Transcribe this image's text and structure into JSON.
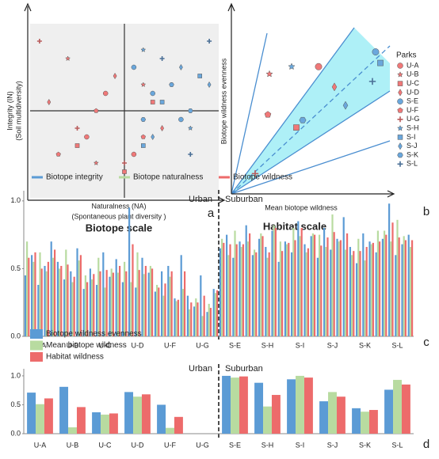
{
  "chart_data": [
    {
      "type": "scatter",
      "title": "Biotope scale",
      "label": "a",
      "xlabel": [
        "Naturalness (NA)",
        "(Spontaneous plant diversity )"
      ],
      "ylabel": [
        "Integrity (IN)",
        "(Soil multidiversity)"
      ],
      "xlim": [
        -1,
        1
      ],
      "ylim": [
        -1,
        1
      ],
      "series": [
        {
          "marker": "circle",
          "color": "#f07878",
          "x": [
            -0.4,
            -0.2,
            0.1
          ],
          "y": [
            -0.3,
            0.2,
            -0.5
          ]
        },
        {
          "marker": "star",
          "color": "#f07878",
          "x": [
            -0.6,
            -0.3,
            0.2
          ],
          "y": [
            0.6,
            -0.6,
            0.3
          ]
        },
        {
          "marker": "square",
          "color": "#f07878",
          "x": [
            -0.5,
            0.0,
            0.3
          ],
          "y": [
            -0.4,
            -0.7,
            0.1
          ]
        },
        {
          "marker": "diamond",
          "color": "#f07878",
          "x": [
            -0.8,
            -0.1,
            0.4
          ],
          "y": [
            0.1,
            0.4,
            -0.2
          ]
        },
        {
          "marker": "circle",
          "color": "#6aa7dc",
          "x": [
            0.3,
            0.6,
            0.1
          ],
          "y": [
            0.2,
            -0.1,
            0.5
          ]
        },
        {
          "marker": "pentagon",
          "color": "#f07878",
          "x": [
            -0.7,
            -0.3,
            0.2
          ],
          "y": [
            -0.5,
            0.0,
            -0.3
          ]
        },
        {
          "marker": "plus",
          "color": "#b85a5a",
          "x": [
            -0.9,
            -0.5,
            0.0
          ],
          "y": [
            0.8,
            -0.2,
            -0.6
          ]
        },
        {
          "marker": "star",
          "color": "#6aa7dc",
          "x": [
            0.5,
            0.2,
            0.7
          ],
          "y": [
            0.3,
            0.7,
            -0.2
          ]
        },
        {
          "marker": "square",
          "color": "#6aa7dc",
          "x": [
            0.4,
            0.8,
            0.2
          ],
          "y": [
            0.1,
            0.4,
            -0.4
          ]
        },
        {
          "marker": "diamond",
          "color": "#6aa7dc",
          "x": [
            0.6,
            0.3,
            0.9
          ],
          "y": [
            0.5,
            -0.3,
            0.3
          ]
        },
        {
          "marker": "hexagon",
          "color": "#6aa7dc",
          "x": [
            0.2,
            0.5,
            0.7
          ],
          "y": [
            -0.1,
            0.3,
            0.0
          ]
        },
        {
          "marker": "plus",
          "color": "#4a6f96",
          "x": [
            0.7,
            0.4,
            0.9
          ],
          "y": [
            -0.5,
            0.6,
            0.8
          ]
        }
      ]
    },
    {
      "type": "scatter",
      "title": "Habitat scale",
      "label": "b",
      "xlabel": [
        "Mean biotope wildness"
      ],
      "ylabel": [
        "Biotope wildness evenness"
      ],
      "legend_title": "Parks",
      "legend": "right",
      "xlim": [
        0,
        1
      ],
      "ylim": [
        0,
        1
      ],
      "series": [
        {
          "name": "U-A",
          "marker": "circle",
          "color": "#f07878",
          "x": [
            0.55
          ],
          "y": [
            0.69
          ]
        },
        {
          "name": "U-B",
          "marker": "star",
          "color": "#f07878",
          "x": [
            0.24
          ],
          "y": [
            0.65
          ]
        },
        {
          "name": "U-C",
          "marker": "square",
          "color": "#f07878",
          "x": [
            0.41
          ],
          "y": [
            0.36
          ]
        },
        {
          "name": "U-D",
          "marker": "diamond",
          "color": "#f07878",
          "x": [
            0.65
          ],
          "y": [
            0.58
          ]
        },
        {
          "name": "S-E",
          "marker": "circle",
          "color": "#6aa7dc",
          "x": [
            0.91
          ],
          "y": [
            0.77
          ]
        },
        {
          "name": "U-F",
          "marker": "pentagon",
          "color": "#f07878",
          "x": [
            0.23
          ],
          "y": [
            0.43
          ]
        },
        {
          "name": "U-G",
          "marker": "plus",
          "color": "#b85a5a",
          "x": [
            0.15
          ],
          "y": [
            0.11
          ]
        },
        {
          "name": "S-H",
          "marker": "star",
          "color": "#6aa7dc",
          "x": [
            0.38
          ],
          "y": [
            0.69
          ]
        },
        {
          "name": "S-I",
          "marker": "square",
          "color": "#6aa7dc",
          "x": [
            0.94
          ],
          "y": [
            0.71
          ]
        },
        {
          "name": "S-J",
          "marker": "diamond",
          "color": "#6aa7dc",
          "x": [
            0.72
          ],
          "y": [
            0.48
          ]
        },
        {
          "name": "S-K",
          "marker": "hexagon",
          "color": "#6aa7dc",
          "x": [
            0.45
          ],
          "y": [
            0.4
          ]
        },
        {
          "name": "S-L",
          "marker": "plus",
          "color": "#4a6f96",
          "x": [
            0.89
          ],
          "y": [
            0.61
          ]
        }
      ]
    },
    {
      "type": "bar",
      "label": "c",
      "legend": "top",
      "annotations": [
        "Urban",
        "Suburban"
      ],
      "ylim": [
        0,
        1.04
      ],
      "yticks": [
        {
          "value": 0,
          "label": "0.0"
        },
        {
          "value": 0.5,
          "label": "0.5"
        },
        {
          "value": 1,
          "label": "1.0"
        }
      ],
      "categories": [
        null,
        null,
        "U-A",
        null,
        null,
        null,
        null,
        "U-B",
        null,
        null,
        null,
        null,
        "U-C",
        null,
        null,
        null,
        null,
        "U-D",
        null,
        null,
        null,
        null,
        "U-F",
        null,
        null,
        null,
        null,
        "U-G",
        null,
        null,
        null,
        null,
        "S-E",
        null,
        null,
        null,
        null,
        "S-H",
        null,
        null,
        null,
        null,
        "S-I",
        null,
        null,
        null,
        null,
        "S-J",
        null,
        null,
        null,
        null,
        "S-K",
        null,
        null,
        null,
        null,
        "S-L",
        null,
        null
      ],
      "series": [
        {
          "name": "Biotope integrity",
          "color": "#5b9bd5",
          "values": [
            0.45,
            0.6,
            0.38,
            0.52,
            0.7,
            0.55,
            0.42,
            0.48,
            0.65,
            0.35,
            0.5,
            0.38,
            0.62,
            0.44,
            0.57,
            0.4,
            0.95,
            0.36,
            0.58,
            0.47,
            0.33,
            0.48,
            0.52,
            0.28,
            0.6,
            0.3,
            0.22,
            0.45,
            0.18,
            0.35,
            0.65,
            0.75,
            0.58,
            0.7,
            0.82,
            0.6,
            0.72,
            0.66,
            0.78,
            0.55,
            0.7,
            0.62,
            0.85,
            0.68,
            0.74,
            0.58,
            0.8,
            0.64,
            0.72,
            0.88,
            0.66,
            0.54,
            0.76,
            0.7,
            0.62,
            0.72,
            0.98,
            0.6,
            0.68,
            0.75
          ]
        },
        {
          "name": "Biotope naturalness",
          "color": "#b8dba0",
          "values": [
            0.7,
            0.55,
            0.62,
            0.48,
            0.58,
            0.5,
            0.64,
            0.4,
            0.56,
            0.45,
            0.42,
            0.58,
            0.36,
            0.5,
            0.47,
            0.55,
            0.4,
            0.62,
            0.46,
            0.52,
            0.38,
            0.3,
            0.44,
            0.26,
            0.35,
            0.2,
            0.28,
            0.15,
            0.24,
            0.32,
            0.72,
            0.6,
            0.78,
            0.66,
            0.7,
            0.64,
            0.76,
            0.58,
            0.82,
            0.7,
            0.68,
            0.8,
            0.74,
            0.62,
            0.76,
            0.75,
            0.66,
            0.9,
            0.7,
            0.64,
            0.6,
            0.72,
            0.56,
            0.68,
            0.78,
            0.78,
            0.7,
            0.86,
            0.74,
            0.66
          ]
        },
        {
          "name": "Biotope wildness",
          "color": "#ed6b6b",
          "values": [
            0.58,
            0.62,
            0.5,
            0.55,
            0.64,
            0.52,
            0.53,
            0.44,
            0.6,
            0.4,
            0.46,
            0.48,
            0.49,
            0.47,
            0.52,
            0.48,
            0.68,
            0.49,
            0.52,
            0.5,
            0.36,
            0.39,
            0.48,
            0.27,
            0.48,
            0.25,
            0.25,
            0.3,
            0.21,
            0.34,
            0.69,
            0.68,
            0.68,
            0.68,
            0.76,
            0.62,
            0.74,
            0.62,
            0.8,
            0.63,
            0.69,
            0.71,
            0.8,
            0.65,
            0.75,
            0.67,
            0.73,
            0.77,
            0.71,
            0.76,
            0.63,
            0.63,
            0.66,
            0.69,
            0.7,
            0.75,
            0.84,
            0.73,
            0.71,
            0.71
          ]
        }
      ]
    },
    {
      "type": "bar",
      "label": "d",
      "legend": "upper left",
      "annotations": [
        "Urban",
        "Suburban"
      ],
      "ylim": [
        0,
        1.04
      ],
      "yticks": [
        {
          "value": 0,
          "label": "0.0"
        },
        {
          "value": 0.5,
          "label": "0.5"
        },
        {
          "value": 1,
          "label": "1.0"
        }
      ],
      "categories": [
        "U-A",
        "U-B",
        "U-C",
        "U-D",
        "U-F",
        "U-G",
        "S-E",
        "S-H",
        "S-I",
        "S-J",
        "S-K",
        "S-L"
      ],
      "series": [
        {
          "name": "Biotope wildness evenness",
          "color": "#5b9bd5",
          "values": [
            0.71,
            0.81,
            0.37,
            0.72,
            0.5,
            0,
            1.0,
            0.88,
            0.94,
            0.56,
            0.44,
            0.76
          ]
        },
        {
          "name": "Mean biotope wildness",
          "color": "#b8dba0",
          "values": [
            0.51,
            0.11,
            0.33,
            0.64,
            0.1,
            0,
            0.97,
            0.47,
            1.0,
            0.72,
            0.38,
            0.93
          ]
        },
        {
          "name": "Habitat wildness",
          "color": "#ed6b6b",
          "values": [
            0.61,
            0.46,
            0.35,
            0.68,
            0.29,
            0,
            0.99,
            0.67,
            0.97,
            0.64,
            0.41,
            0.85
          ]
        }
      ]
    }
  ]
}
